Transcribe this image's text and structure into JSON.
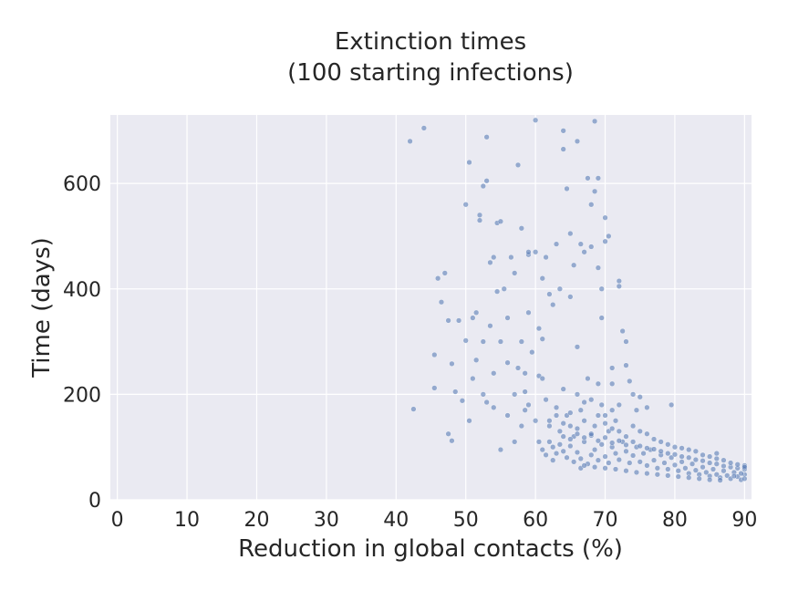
{
  "chart_data": {
    "type": "scatter",
    "title_line1": "Extinction times",
    "title_line2": "(100 starting infections)",
    "xlabel": "Reduction in global contacts (%)",
    "ylabel": "Time (days)",
    "xlim": [
      -1,
      91
    ],
    "ylim": [
      0,
      730
    ],
    "xticks": [
      0,
      10,
      20,
      30,
      40,
      50,
      60,
      70,
      80,
      90
    ],
    "yticks": [
      0,
      200,
      400,
      600
    ],
    "grid": true,
    "background_color": "#eaeaf2",
    "point_color": "#4c72b0",
    "points": [
      [
        42,
        680
      ],
      [
        44,
        705
      ],
      [
        42.5,
        172
      ],
      [
        45.5,
        212
      ],
      [
        45.5,
        275
      ],
      [
        46,
        420
      ],
      [
        46.5,
        375
      ],
      [
        47,
        430
      ],
      [
        47.5,
        340
      ],
      [
        48,
        258
      ],
      [
        47.5,
        125
      ],
      [
        48,
        112
      ],
      [
        48.5,
        205
      ],
      [
        49,
        340
      ],
      [
        49.5,
        188
      ],
      [
        50,
        302
      ],
      [
        50,
        560
      ],
      [
        50.5,
        640
      ],
      [
        50.5,
        150
      ],
      [
        51,
        345
      ],
      [
        51,
        230
      ],
      [
        51.5,
        265
      ],
      [
        51.5,
        355
      ],
      [
        52,
        530
      ],
      [
        52,
        540
      ],
      [
        52.5,
        595
      ],
      [
        52.5,
        300
      ],
      [
        52.5,
        200
      ],
      [
        53,
        605
      ],
      [
        53,
        688
      ],
      [
        53,
        185
      ],
      [
        53.5,
        450
      ],
      [
        53.5,
        330
      ],
      [
        54,
        460
      ],
      [
        54,
        240
      ],
      [
        54,
        175
      ],
      [
        54.5,
        525
      ],
      [
        54.5,
        395
      ],
      [
        55,
        528
      ],
      [
        55,
        300
      ],
      [
        55,
        95
      ],
      [
        55.5,
        400
      ],
      [
        56,
        345
      ],
      [
        56,
        160
      ],
      [
        56.5,
        460
      ],
      [
        57,
        430
      ],
      [
        57,
        110
      ],
      [
        57.5,
        635
      ],
      [
        57.5,
        250
      ],
      [
        58,
        515
      ],
      [
        58,
        300
      ],
      [
        58.5,
        205
      ],
      [
        58.5,
        170
      ],
      [
        59,
        465
      ],
      [
        59,
        470
      ],
      [
        59,
        355
      ],
      [
        59.5,
        280
      ],
      [
        60,
        720
      ],
      [
        60,
        470
      ],
      [
        60.5,
        325
      ],
      [
        60.5,
        235
      ],
      [
        61,
        420
      ],
      [
        61,
        305
      ],
      [
        61.5,
        460
      ],
      [
        62,
        390
      ],
      [
        62.5,
        370
      ],
      [
        63,
        485
      ],
      [
        63.5,
        400
      ],
      [
        64,
        700
      ],
      [
        64,
        665
      ],
      [
        64.5,
        590
      ],
      [
        65,
        385
      ],
      [
        65,
        505
      ],
      [
        65.5,
        445
      ],
      [
        66,
        290
      ],
      [
        66,
        680
      ],
      [
        66.5,
        485
      ],
      [
        67,
        470
      ],
      [
        67.5,
        610
      ],
      [
        68,
        560
      ],
      [
        68,
        480
      ],
      [
        68.5,
        585
      ],
      [
        68.5,
        718
      ],
      [
        69,
        610
      ],
      [
        69,
        440
      ],
      [
        69.5,
        400
      ],
      [
        69.5,
        345
      ],
      [
        70,
        535
      ],
      [
        70,
        490
      ],
      [
        70.5,
        500
      ],
      [
        71,
        250
      ],
      [
        71,
        220
      ],
      [
        72,
        415
      ],
      [
        72,
        405
      ],
      [
        72.5,
        320
      ],
      [
        73,
        300
      ],
      [
        73,
        255
      ],
      [
        73.5,
        225
      ],
      [
        74,
        200
      ],
      [
        74.5,
        170
      ],
      [
        75,
        195
      ],
      [
        76,
        175
      ],
      [
        79.5,
        180
      ],
      [
        56,
        260
      ],
      [
        57,
        200
      ],
      [
        58,
        140
      ],
      [
        58.5,
        240
      ],
      [
        59,
        180
      ],
      [
        60,
        150
      ],
      [
        60.5,
        110
      ],
      [
        61,
        230
      ],
      [
        61.5,
        190
      ],
      [
        62,
        140
      ],
      [
        62.5,
        100
      ],
      [
        63,
        160
      ],
      [
        63.5,
        130
      ],
      [
        64,
        210
      ],
      [
        64.5,
        160
      ],
      [
        65,
        140
      ],
      [
        65.5,
        120
      ],
      [
        66,
        200
      ],
      [
        66.5,
        170
      ],
      [
        67,
        150
      ],
      [
        67.5,
        230
      ],
      [
        68,
        190
      ],
      [
        68.5,
        140
      ],
      [
        69,
        220
      ],
      [
        69.5,
        180
      ],
      [
        70,
        160
      ],
      [
        70.5,
        130
      ],
      [
        71,
        170
      ],
      [
        71.5,
        150
      ],
      [
        72,
        130
      ],
      [
        61,
        95
      ],
      [
        61.5,
        85
      ],
      [
        62,
        110
      ],
      [
        62.5,
        75
      ],
      [
        63,
        88
      ],
      [
        63.5,
        105
      ],
      [
        64,
        92
      ],
      [
        64.5,
        80
      ],
      [
        65,
        102
      ],
      [
        65.5,
        72
      ],
      [
        66,
        90
      ],
      [
        66.5,
        78
      ],
      [
        67,
        110
      ],
      [
        67.5,
        68
      ],
      [
        68,
        85
      ],
      [
        68.5,
        95
      ],
      [
        69,
        75
      ],
      [
        69.5,
        105
      ],
      [
        70,
        82
      ],
      [
        70.5,
        70
      ],
      [
        71,
        100
      ],
      [
        71.5,
        88
      ],
      [
        72,
        76
      ],
      [
        72.5,
        110
      ],
      [
        73,
        92
      ],
      [
        73.5,
        70
      ],
      [
        74,
        84
      ],
      [
        74.5,
        100
      ],
      [
        75,
        72
      ],
      [
        75.5,
        88
      ],
      [
        76,
        65
      ],
      [
        76.5,
        95
      ],
      [
        77,
        75
      ],
      [
        77.5,
        60
      ],
      [
        78,
        85
      ],
      [
        78.5,
        70
      ],
      [
        79,
        58
      ],
      [
        79.5,
        80
      ],
      [
        80,
        66
      ],
      [
        80.5,
        55
      ],
      [
        81,
        72
      ],
      [
        81.5,
        60
      ],
      [
        82,
        50
      ],
      [
        82.5,
        68
      ],
      [
        83,
        56
      ],
      [
        83.5,
        48
      ],
      [
        84,
        62
      ],
      [
        84.5,
        52
      ],
      [
        85,
        45
      ],
      [
        85.5,
        58
      ],
      [
        86,
        48
      ],
      [
        86.5,
        42
      ],
      [
        87,
        55
      ],
      [
        87.5,
        46
      ],
      [
        88,
        40
      ],
      [
        88.5,
        52
      ],
      [
        89,
        44
      ],
      [
        89.5,
        38
      ],
      [
        90,
        48
      ],
      [
        90,
        40
      ],
      [
        64,
        120
      ],
      [
        65,
        115
      ],
      [
        66,
        125
      ],
      [
        67,
        118
      ],
      [
        68,
        122
      ],
      [
        69,
        112
      ],
      [
        70,
        118
      ],
      [
        71,
        108
      ],
      [
        72,
        112
      ],
      [
        73,
        104
      ],
      [
        74,
        110
      ],
      [
        75,
        102
      ],
      [
        76,
        98
      ],
      [
        77,
        96
      ],
      [
        78,
        92
      ],
      [
        79,
        88
      ],
      [
        80,
        86
      ],
      [
        81,
        82
      ],
      [
        82,
        80
      ],
      [
        83,
        76
      ],
      [
        84,
        74
      ],
      [
        85,
        70
      ],
      [
        86,
        68
      ],
      [
        87,
        64
      ],
      [
        88,
        62
      ],
      [
        89,
        60
      ],
      [
        90,
        58
      ],
      [
        90,
        65
      ],
      [
        89.5,
        50
      ],
      [
        88.5,
        45
      ],
      [
        66.5,
        60
      ],
      [
        67,
        65
      ],
      [
        68.5,
        62
      ],
      [
        70,
        60
      ],
      [
        71.5,
        58
      ],
      [
        73,
        55
      ],
      [
        74.5,
        52
      ],
      [
        76,
        50
      ],
      [
        77.5,
        48
      ],
      [
        79,
        46
      ],
      [
        80.5,
        44
      ],
      [
        82,
        42
      ],
      [
        83.5,
        40
      ],
      [
        85,
        38
      ],
      [
        86.5,
        37
      ],
      [
        62,
        150
      ],
      [
        63,
        175
      ],
      [
        64,
        145
      ],
      [
        65,
        165
      ],
      [
        66,
        135
      ],
      [
        67,
        185
      ],
      [
        68,
        125
      ],
      [
        69,
        160
      ],
      [
        70,
        145
      ],
      [
        71,
        135
      ],
      [
        72,
        180
      ],
      [
        73,
        120
      ],
      [
        74,
        140
      ],
      [
        75,
        130
      ],
      [
        76,
        125
      ],
      [
        77,
        115
      ],
      [
        78,
        110
      ],
      [
        79,
        105
      ],
      [
        80,
        100
      ],
      [
        81,
        98
      ],
      [
        82,
        95
      ],
      [
        83,
        92
      ],
      [
        84,
        85
      ],
      [
        85,
        82
      ],
      [
        86,
        78
      ],
      [
        87,
        75
      ],
      [
        88,
        70
      ],
      [
        89,
        67
      ],
      [
        90,
        62
      ],
      [
        86,
        88
      ]
    ]
  }
}
